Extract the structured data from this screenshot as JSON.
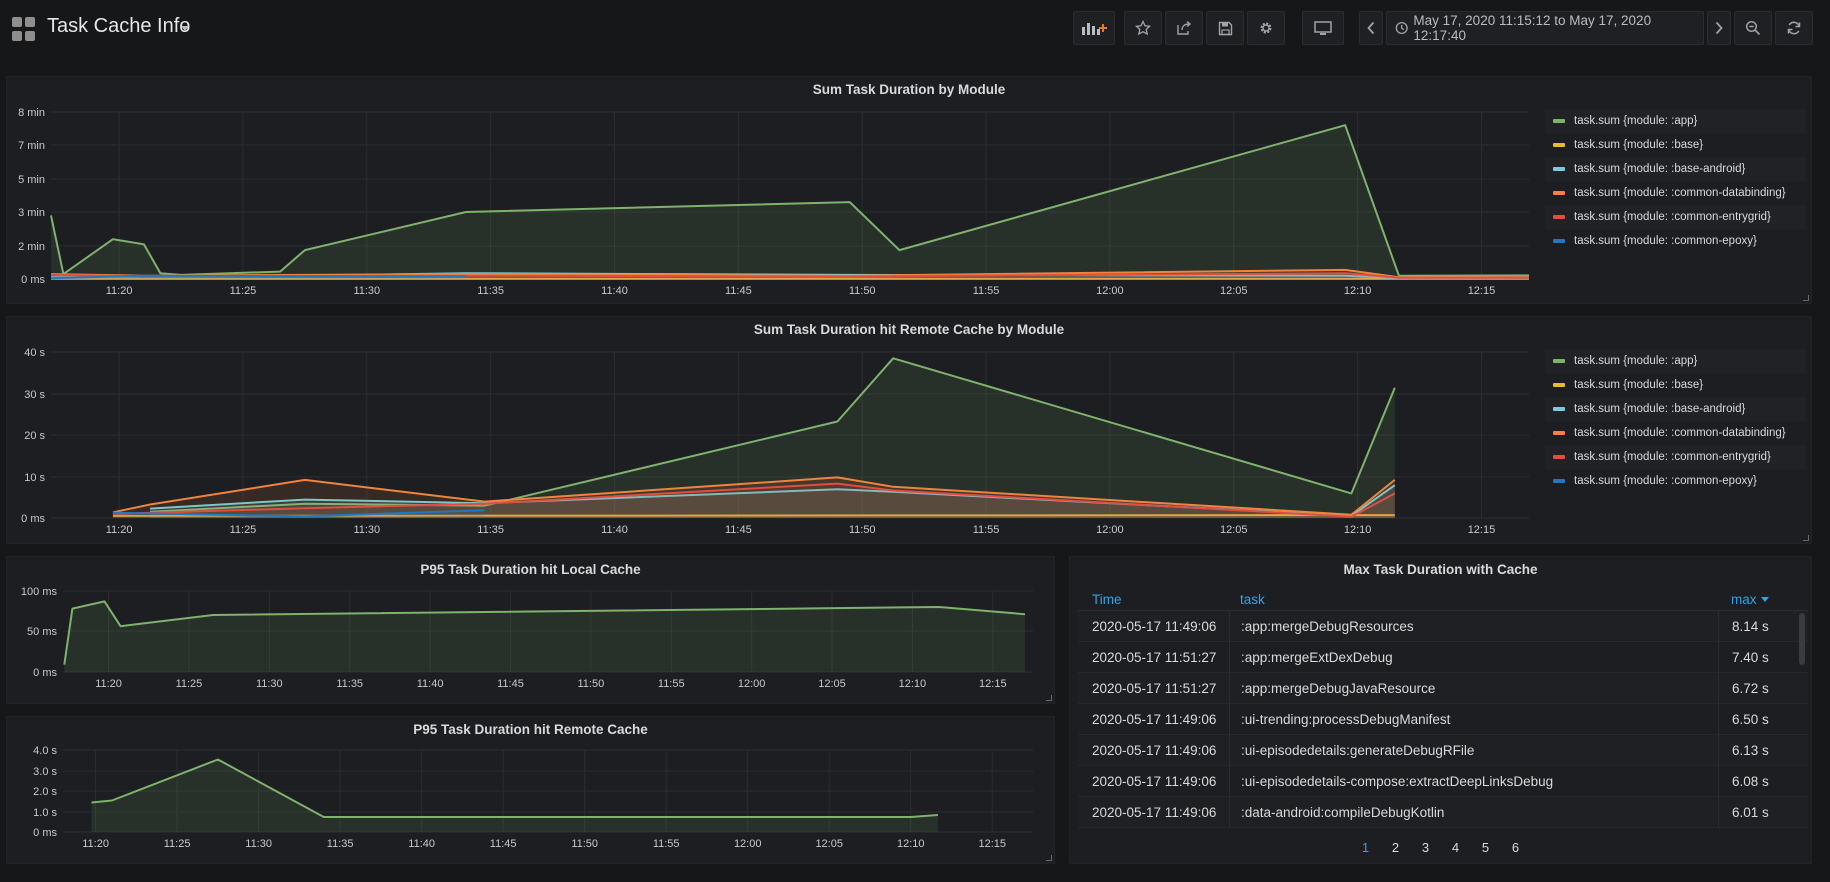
{
  "header": {
    "title": "Task Cache Info",
    "time_range": "May 17, 2020 11:15:12 to May 17, 2020 12:17:40",
    "buttons": [
      "add-panel-icon",
      "star-icon",
      "share-icon",
      "save-icon",
      "gear-icon",
      "monitor-icon",
      "chevron-left-icon",
      "clock-icon",
      "chevron-right-icon",
      "zoom-out-icon",
      "refresh-icon"
    ]
  },
  "colors": {
    "app": "#7eb26d",
    "base": "#eab839",
    "base_android": "#6ed0e0",
    "common_databinding": "#ef843c",
    "common_entrygrid": "#e24d42",
    "common_epoxy": "#1f78c1",
    "accent": "#33a2e5"
  },
  "legend": [
    "task.sum {module: :app}",
    "task.sum {module: :base}",
    "task.sum {module: :base-android}",
    "task.sum {module: :common-databinding}",
    "task.sum {module: :common-entrygrid}",
    "task.sum {module: :common-epoxy}"
  ],
  "panels": {
    "sum_duration": {
      "title": "Sum Task Duration by Module",
      "chart_data": {
        "type": "area",
        "x_ticks": [
          "11:20",
          "11:25",
          "11:30",
          "11:35",
          "11:40",
          "11:45",
          "11:50",
          "11:55",
          "12:00",
          "12:05",
          "12:10",
          "12:15"
        ],
        "y_ticks": [
          "8 min",
          "7 min",
          "5 min",
          "3 min",
          "2 min",
          "0 ms"
        ],
        "series": [
          {
            "name": "task.sum {module: :app}",
            "color": "#7eb26d",
            "points": [
              [
                "11:17:15",
                2.9
              ],
              [
                "11:17:45",
                0.3
              ],
              [
                "11:19:45",
                2.2
              ],
              [
                "11:21:00",
                2.05
              ],
              [
                "11:21:40",
                0.35
              ],
              [
                "11:22:30",
                0.25
              ],
              [
                "11:26:30",
                0.45
              ],
              [
                "11:27:30",
                1.75
              ],
              [
                "11:34:00",
                3.0
              ],
              [
                "11:49:30",
                3.6
              ],
              [
                "11:51:30",
                1.75
              ],
              [
                "12:09:30",
                7.6
              ],
              [
                "12:11:40",
                0.2
              ],
              [
                "12:17:00",
                0.22
              ]
            ]
          },
          {
            "name": "task.sum {module: :base}",
            "color": "#eab839",
            "points": [
              [
                "11:17:15",
                0.02
              ],
              [
                "12:17:00",
                0.02
              ]
            ]
          },
          {
            "name": "task.sum {module: :base-android}",
            "color": "#6ed0e0",
            "points": [
              [
                "11:17:15",
                0.1
              ],
              [
                "11:21:00",
                0.15
              ],
              [
                "11:27:30",
                0.2
              ],
              [
                "11:34:00",
                0.35
              ],
              [
                "11:49:30",
                0.25
              ],
              [
                "12:09:30",
                0.2
              ],
              [
                "12:11:40",
                0.05
              ],
              [
                "12:17:00",
                0.05
              ]
            ]
          },
          {
            "name": "task.sum {module: :common-databinding}",
            "color": "#ef843c",
            "points": [
              [
                "11:17:15",
                0.3
              ],
              [
                "11:21:00",
                0.2
              ],
              [
                "11:27:30",
                0.25
              ],
              [
                "11:34:00",
                0.3
              ],
              [
                "11:49:30",
                0.2
              ],
              [
                "12:09:30",
                0.55
              ],
              [
                "12:11:40",
                0.1
              ],
              [
                "12:17:00",
                0.1
              ]
            ]
          },
          {
            "name": "task.sum {module: :common-entrygrid}",
            "color": "#e24d42",
            "points": [
              [
                "11:17:15",
                0.25
              ],
              [
                "11:21:00",
                0.15
              ],
              [
                "11:34:00",
                0.2
              ],
              [
                "11:49:30",
                0.15
              ],
              [
                "12:09:30",
                0.35
              ],
              [
                "12:11:40",
                0.08
              ],
              [
                "12:17:00",
                0.08
              ]
            ]
          },
          {
            "name": "task.sum {module: :common-epoxy}",
            "color": "#1f78c1",
            "points": [
              [
                "11:17:15",
                0.05
              ],
              [
                "11:19:45",
                0.15
              ],
              [
                "11:21:00",
                0.2
              ],
              [
                "11:34:00",
                0.15
              ]
            ]
          }
        ]
      }
    },
    "remote_sum": {
      "title": "Sum Task Duration hit Remote Cache by Module",
      "chart_data": {
        "type": "area",
        "x_ticks": [
          "11:20",
          "11:25",
          "11:30",
          "11:35",
          "11:40",
          "11:45",
          "11:50",
          "11:55",
          "12:00",
          "12:05",
          "12:10",
          "12:15"
        ],
        "y_ticks": [
          "40 s",
          "30 s",
          "20 s",
          "10 s",
          "0 ms"
        ],
        "series": [
          {
            "name": "task.sum {module: :app}",
            "color": "#7eb26d",
            "points": [
              [
                "11:21:15",
                1.5
              ],
              [
                "11:27:30",
                3.5
              ],
              [
                "11:34:45",
                3.0
              ],
              [
                "11:49:00",
                23.3
              ],
              [
                "11:51:15",
                38.5
              ],
              [
                "12:09:45",
                6.0
              ],
              [
                "12:11:30",
                31.5
              ]
            ]
          },
          {
            "name": "task.sum {module: :base}",
            "color": "#eab839",
            "points": [
              [
                "11:19:45",
                0.5
              ],
              [
                "12:11:30",
                0.7
              ]
            ]
          },
          {
            "name": "task.sum {module: :base-android}",
            "color": "#6ed0e0",
            "points": [
              [
                "11:21:15",
                2.3
              ],
              [
                "11:27:30",
                4.5
              ],
              [
                "11:34:45",
                3.6
              ],
              [
                "11:49:00",
                7.0
              ],
              [
                "11:51:15",
                6.4
              ],
              [
                "12:09:45",
                0.5
              ],
              [
                "12:11:30",
                8.0
              ]
            ]
          },
          {
            "name": "task.sum {module: :common-databinding}",
            "color": "#ef843c",
            "points": [
              [
                "11:19:45",
                1.4
              ],
              [
                "11:21:15",
                3.3
              ],
              [
                "11:27:30",
                9.3
              ],
              [
                "11:34:45",
                4.0
              ],
              [
                "11:49:00",
                9.9
              ],
              [
                "11:51:15",
                7.6
              ],
              [
                "12:09:45",
                0.8
              ],
              [
                "12:11:30",
                9.3
              ]
            ]
          },
          {
            "name": "task.sum {module: :common-entrygrid}",
            "color": "#e24d42",
            "points": [
              [
                "11:19:45",
                1.0
              ],
              [
                "11:27:30",
                2.4
              ],
              [
                "11:34:45",
                3.5
              ],
              [
                "11:49:00",
                8.4
              ],
              [
                "11:51:15",
                6.7
              ],
              [
                "12:09:45",
                0.3
              ],
              [
                "12:11:30",
                6.0
              ]
            ]
          },
          {
            "name": "task.sum {module: :common-epoxy}",
            "color": "#1f78c1",
            "points": [
              [
                "11:19:45",
                1.3
              ],
              [
                "11:27:30",
                0.4
              ],
              [
                "11:34:45",
                1.9
              ]
            ]
          }
        ]
      }
    },
    "p95_local": {
      "title": "P95 Task Duration hit Local Cache",
      "chart_data": {
        "type": "area",
        "x_ticks": [
          "11:20",
          "11:25",
          "11:30",
          "11:35",
          "11:40",
          "11:45",
          "11:50",
          "11:55",
          "12:00",
          "12:05",
          "12:10",
          "12:15"
        ],
        "y_ticks": [
          "100 ms",
          "50 ms",
          "0 ms"
        ],
        "series": [
          {
            "color": "#7eb26d",
            "points": [
              [
                "11:17:15",
                9
              ],
              [
                "11:17:45",
                78
              ],
              [
                "11:19:45",
                87
              ],
              [
                "11:20:45",
                56
              ],
              [
                "11:26:30",
                70
              ],
              [
                "12:11:40",
                80
              ],
              [
                "12:17:00",
                71
              ]
            ]
          }
        ]
      }
    },
    "p95_remote": {
      "title": "P95 Task Duration hit Remote Cache",
      "chart_data": {
        "type": "area",
        "x_ticks": [
          "11:20",
          "11:25",
          "11:30",
          "11:35",
          "11:40",
          "11:45",
          "11:50",
          "11:55",
          "12:00",
          "12:05",
          "12:10",
          "12:15"
        ],
        "y_ticks": [
          "4.0 s",
          "3.0 s",
          "2.0 s",
          "1.0 s",
          "0 ms"
        ],
        "series": [
          {
            "color": "#7eb26d",
            "points": [
              [
                "11:19:45",
                1.45
              ],
              [
                "11:21:00",
                1.55
              ],
              [
                "11:27:30",
                3.55
              ],
              [
                "11:34:00",
                0.75
              ],
              [
                "12:10:00",
                0.75
              ],
              [
                "12:11:40",
                0.85
              ]
            ]
          }
        ]
      }
    },
    "max_table": {
      "title": "Max Task Duration with Cache",
      "columns": {
        "time": "Time",
        "task": "task",
        "max": "max"
      },
      "rows": [
        {
          "time": "2020-05-17 11:49:06",
          "task": ":app:mergeDebugResources",
          "max": "8.14 s"
        },
        {
          "time": "2020-05-17 11:51:27",
          "task": ":app:mergeExtDexDebug",
          "max": "7.40 s"
        },
        {
          "time": "2020-05-17 11:51:27",
          "task": ":app:mergeDebugJavaResource",
          "max": "6.72 s"
        },
        {
          "time": "2020-05-17 11:49:06",
          "task": ":ui-trending:processDebugManifest",
          "max": "6.50 s"
        },
        {
          "time": "2020-05-17 11:49:06",
          "task": ":ui-episodedetails:generateDebugRFile",
          "max": "6.13 s"
        },
        {
          "time": "2020-05-17 11:49:06",
          "task": ":ui-episodedetails-compose:extractDeepLinksDebug",
          "max": "6.08 s"
        },
        {
          "time": "2020-05-17 11:49:06",
          "task": ":data-android:compileDebugKotlin",
          "max": "6.01 s"
        }
      ],
      "pages": [
        "1",
        "2",
        "3",
        "4",
        "5",
        "6"
      ],
      "active_page": "1"
    }
  }
}
